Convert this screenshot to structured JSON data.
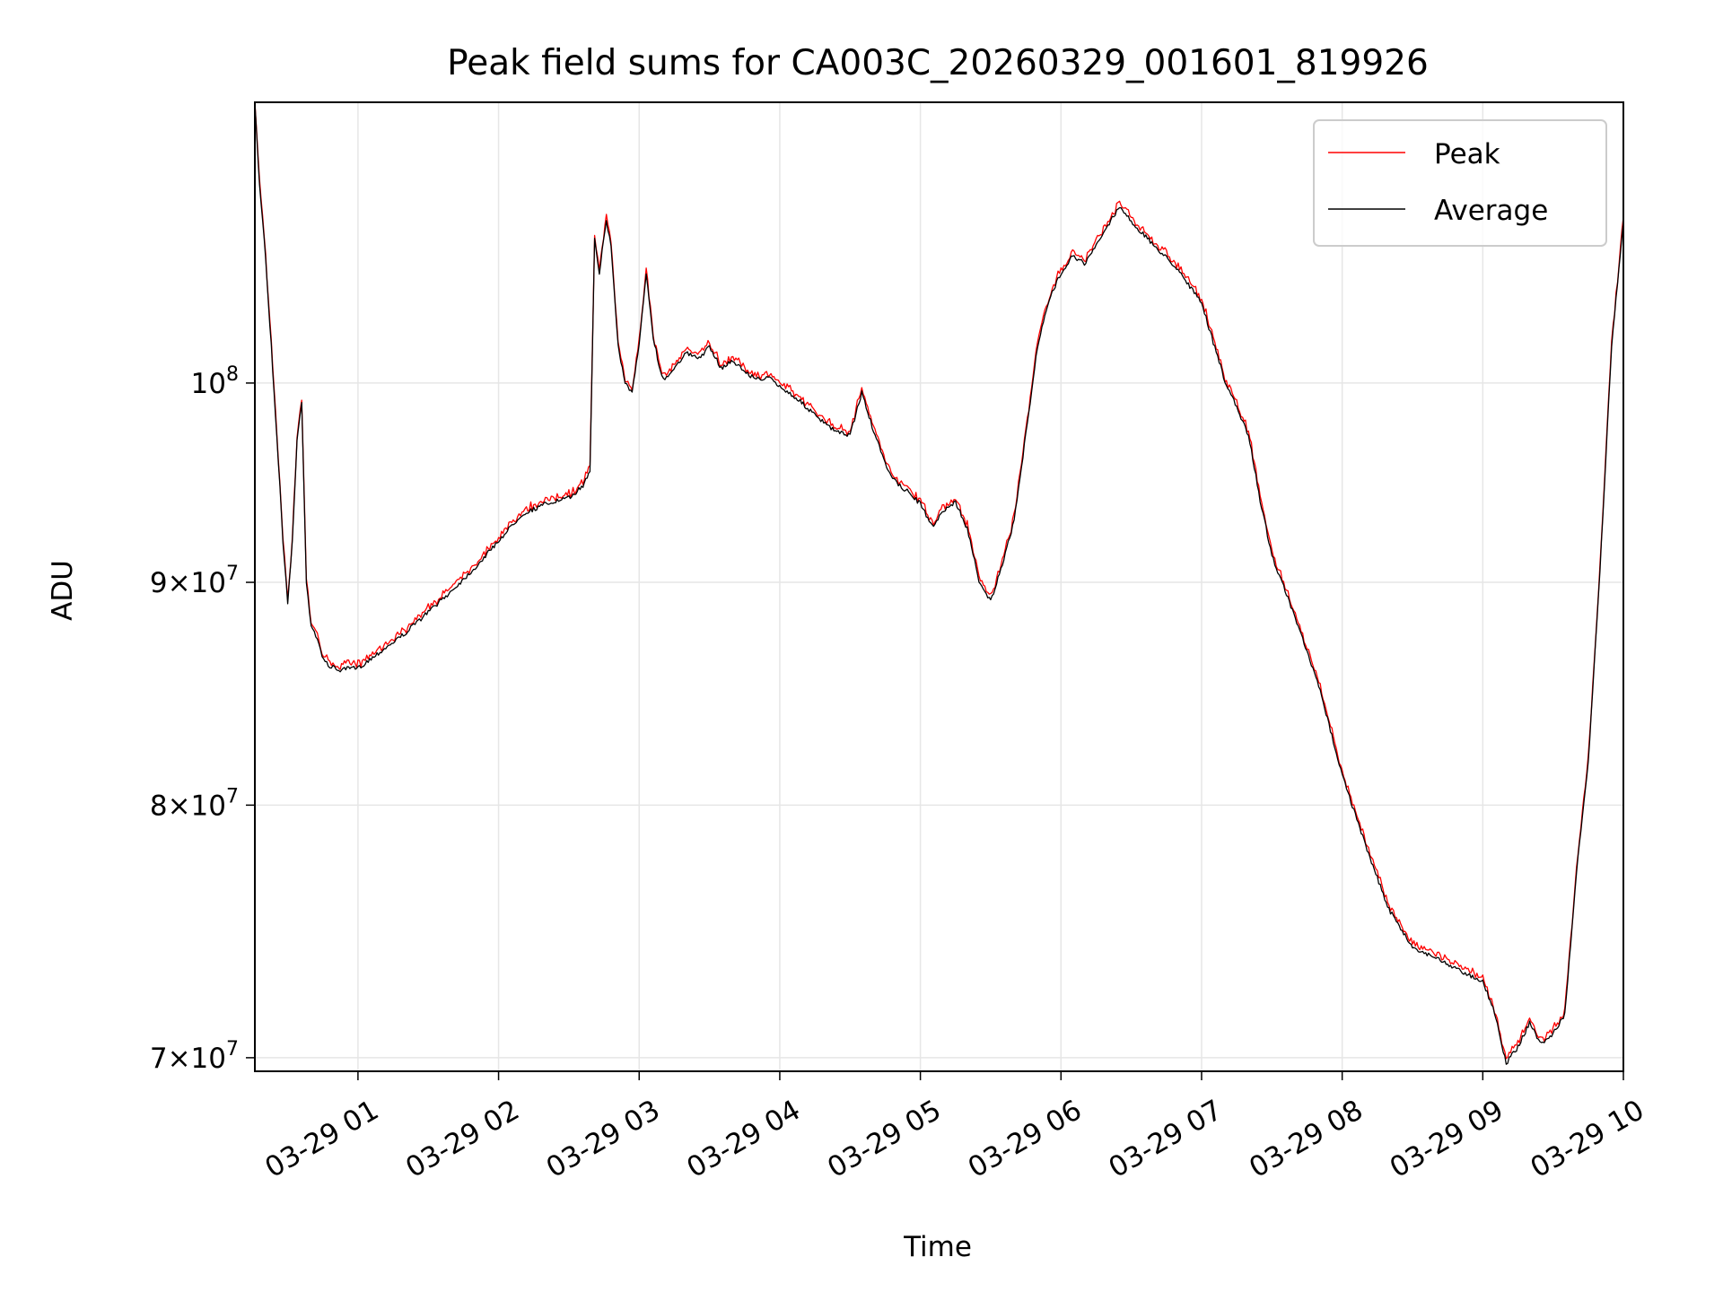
{
  "chart_data": {
    "type": "line",
    "title": "Peak field sums for CA003C_20260329_001601_819926",
    "xlabel": "Time",
    "ylabel": "ADU",
    "xlim": [
      "2026-03-29 00:16",
      "2026-03-29 10:00"
    ],
    "ylim": [
      69500000,
      116000000
    ],
    "y_scale": "log",
    "grid": true,
    "legend_position": "top-right",
    "x_ticks": [
      "03-29 01",
      "03-29 02",
      "03-29 03",
      "03-29 04",
      "03-29 05",
      "03-29 06",
      "03-29 07",
      "03-29 08",
      "03-29 09",
      "03-29 10"
    ],
    "y_ticks": [
      {
        "value": 100000000,
        "base": "10",
        "exp": "8"
      },
      {
        "value": 90000000,
        "mant": "9",
        "base": "10",
        "exp": "7"
      },
      {
        "value": 80000000,
        "mant": "8",
        "base": "10",
        "exp": "7"
      },
      {
        "value": 70000000,
        "mant": "7",
        "base": "10",
        "exp": "7"
      }
    ],
    "series": [
      {
        "name": "Peak",
        "color": "#ff0000"
      },
      {
        "name": "Average",
        "color": "#000000"
      }
    ],
    "x": [
      "2026-03-29 00:16",
      "2026-03-29 00:18",
      "2026-03-29 00:20",
      "2026-03-29 00:23",
      "2026-03-29 00:26",
      "2026-03-29 00:28",
      "2026-03-29 00:30",
      "2026-03-29 00:32",
      "2026-03-29 00:34",
      "2026-03-29 00:36",
      "2026-03-29 00:38",
      "2026-03-29 00:40",
      "2026-03-29 00:42",
      "2026-03-29 00:44",
      "2026-03-29 00:46",
      "2026-03-29 00:48",
      "2026-03-29 00:50",
      "2026-03-29 00:53",
      "2026-03-29 00:56",
      "2026-03-29 01:00",
      "2026-03-29 01:10",
      "2026-03-29 01:20",
      "2026-03-29 01:30",
      "2026-03-29 01:40",
      "2026-03-29 01:50",
      "2026-03-29 02:00",
      "2026-03-29 02:10",
      "2026-03-29 02:20",
      "2026-03-29 02:30",
      "2026-03-29 02:36",
      "2026-03-29 02:39",
      "2026-03-29 02:41",
      "2026-03-29 02:43",
      "2026-03-29 02:46",
      "2026-03-29 02:48",
      "2026-03-29 02:51",
      "2026-03-29 02:54",
      "2026-03-29 02:57",
      "2026-03-29 03:00",
      "2026-03-29 03:03",
      "2026-03-29 03:06",
      "2026-03-29 03:09",
      "2026-03-29 03:11",
      "2026-03-29 03:13",
      "2026-03-29 03:16",
      "2026-03-29 03:20",
      "2026-03-29 03:25",
      "2026-03-29 03:30",
      "2026-03-29 03:35",
      "2026-03-29 03:40",
      "2026-03-29 03:45",
      "2026-03-29 03:50",
      "2026-03-29 03:55",
      "2026-03-29 04:00",
      "2026-03-29 04:05",
      "2026-03-29 04:10",
      "2026-03-29 04:15",
      "2026-03-29 04:20",
      "2026-03-29 04:25",
      "2026-03-29 04:30",
      "2026-03-29 04:35",
      "2026-03-29 04:40",
      "2026-03-29 04:45",
      "2026-03-29 04:50",
      "2026-03-29 04:55",
      "2026-03-29 05:00",
      "2026-03-29 05:05",
      "2026-03-29 05:10",
      "2026-03-29 05:15",
      "2026-03-29 05:20",
      "2026-03-29 05:25",
      "2026-03-29 05:30",
      "2026-03-29 05:35",
      "2026-03-29 05:40",
      "2026-03-29 05:45",
      "2026-03-29 05:50",
      "2026-03-29 05:55",
      "2026-03-29 06:00",
      "2026-03-29 06:05",
      "2026-03-29 06:10",
      "2026-03-29 06:15",
      "2026-03-29 06:20",
      "2026-03-29 06:25",
      "2026-03-29 06:30",
      "2026-03-29 06:40",
      "2026-03-29 06:50",
      "2026-03-29 07:00",
      "2026-03-29 07:10",
      "2026-03-29 07:20",
      "2026-03-29 07:25",
      "2026-03-29 07:30",
      "2026-03-29 07:40",
      "2026-03-29 07:50",
      "2026-03-29 08:00",
      "2026-03-29 08:10",
      "2026-03-29 08:20",
      "2026-03-29 08:30",
      "2026-03-29 08:40",
      "2026-03-29 08:50",
      "2026-03-29 09:00",
      "2026-03-29 09:05",
      "2026-03-29 09:10",
      "2026-03-29 09:15",
      "2026-03-29 09:20",
      "2026-03-29 09:25",
      "2026-03-29 09:30",
      "2026-03-29 09:35",
      "2026-03-29 09:40",
      "2026-03-29 09:45",
      "2026-03-29 09:50",
      "2026-03-29 09:55",
      "2026-03-29 10:00"
    ],
    "y": [
      116000000,
      111000000,
      108000000,
      102000000,
      96000000,
      92000000,
      89000000,
      92000000,
      97000000,
      99000000,
      90000000,
      88000000,
      87500000,
      86800000,
      86300000,
      86100000,
      86000000,
      85900000,
      86000000,
      86000000,
      86800000,
      87600000,
      88600000,
      89600000,
      90700000,
      92000000,
      93300000,
      93800000,
      94100000,
      94700000,
      95500000,
      108000000,
      106000000,
      109000000,
      107500000,
      102000000,
      100000000,
      99500000,
      102000000,
      106000000,
      102500000,
      100600000,
      100200000,
      100500000,
      101000000,
      101600000,
      101300000,
      101900000,
      100800000,
      101200000,
      100600000,
      100200000,
      100300000,
      99800000,
      99400000,
      98900000,
      98300000,
      97800000,
      97400000,
      97300000,
      99500000,
      97500000,
      95800000,
      94800000,
      94400000,
      93800000,
      92700000,
      93500000,
      93900000,
      92600000,
      90100000,
      89100000,
      90800000,
      93000000,
      97300000,
      102000000,
      104500000,
      106000000,
      107000000,
      106500000,
      107500000,
      108700000,
      109800000,
      108900000,
      107500000,
      106200000,
      104300000,
      100100000,
      97300000,
      94000000,
      91300000,
      88300000,
      85200000,
      81300000,
      78300000,
      75700000,
      74200000,
      73800000,
      73300000,
      72900000,
      71700000,
      69800000,
      70400000,
      71300000,
      70500000,
      70900000,
      71600000,
      77200000,
      81800000,
      90600000,
      102000000,
      109000000
    ]
  }
}
